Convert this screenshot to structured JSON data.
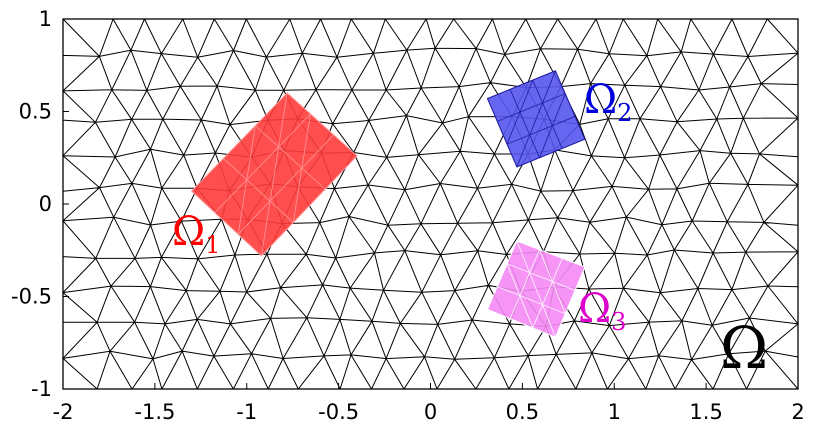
{
  "figure": {
    "axes": {
      "x_range": [
        -2,
        2
      ],
      "y_range": [
        -1,
        1
      ],
      "x_ticks": [
        "-2",
        "-1.5",
        "-1",
        "-0.5",
        "0",
        "0.5",
        "1",
        "1.5",
        "2"
      ],
      "y_ticks": [
        "1",
        "0.5",
        "0",
        "-0.5",
        "-1"
      ],
      "grid": false
    },
    "mesh": {
      "type": "triangular",
      "nx": 22,
      "ny": 11,
      "edge_color": "#000000"
    },
    "domain": {
      "label": "Ω",
      "color": "#000000"
    },
    "subdomains": [
      {
        "id": "omega-1",
        "label": "Ω",
        "subscript": "1",
        "fill": "#ff3b3b",
        "line_color": "#ff9a9a",
        "label_color": "#ff0000",
        "corners": [
          [
            -0.78,
            0.6
          ],
          [
            -0.4,
            0.26
          ],
          [
            -0.92,
            -0.28
          ],
          [
            -1.3,
            0.07
          ]
        ]
      },
      {
        "id": "omega-2",
        "label": "Ω",
        "subscript": "2",
        "fill": "#5555ee",
        "line_color": "#1a1a9a",
        "label_color": "#0000dd",
        "corners": [
          [
            0.68,
            0.72
          ],
          [
            0.84,
            0.35
          ],
          [
            0.47,
            0.2
          ],
          [
            0.31,
            0.57
          ]
        ]
      },
      {
        "id": "omega-3",
        "label": "Ω",
        "subscript": "3",
        "fill": "#f58af5",
        "line_color": "#ffffff",
        "label_color": "#dd00cc",
        "corners": [
          [
            0.47,
            -0.2
          ],
          [
            0.84,
            -0.34
          ],
          [
            0.68,
            -0.72
          ],
          [
            0.31,
            -0.57
          ]
        ]
      }
    ]
  }
}
